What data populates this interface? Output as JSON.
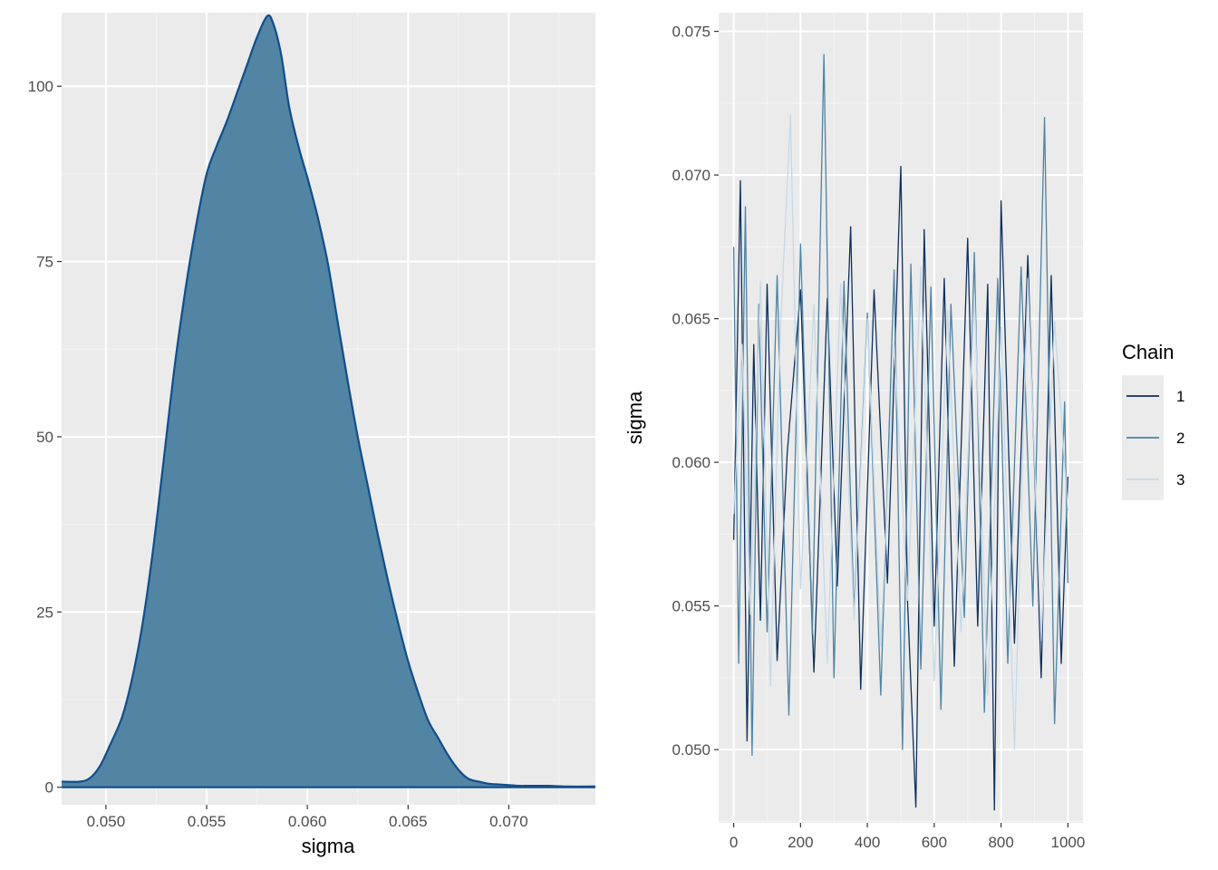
{
  "chart_data": [
    {
      "type": "area",
      "xlabel": "sigma",
      "ylabel": "",
      "xlim": [
        0.0478,
        0.0743
      ],
      "ylim": [
        -2.5,
        110.5
      ],
      "xticks": [
        0.05,
        0.055,
        0.06,
        0.065,
        0.07
      ],
      "xtick_labels": [
        "0.050",
        "0.055",
        "0.060",
        "0.065",
        "0.070"
      ],
      "yticks": [
        0,
        25,
        50,
        75,
        100
      ],
      "ytick_labels": [
        "0",
        "25",
        "50",
        "75",
        "100"
      ],
      "grid": true,
      "fill_color": "#5284a3",
      "line_color": "#104e8b",
      "x": [
        0.0478,
        0.0487,
        0.0492,
        0.0497,
        0.0502,
        0.0508,
        0.0513,
        0.0518,
        0.0523,
        0.0528,
        0.0532,
        0.0535,
        0.054,
        0.0545,
        0.055,
        0.0555,
        0.056,
        0.0565,
        0.057,
        0.0575,
        0.058,
        0.0583,
        0.0587,
        0.0591,
        0.0596,
        0.06,
        0.0605,
        0.061,
        0.0615,
        0.062,
        0.0625,
        0.063,
        0.0635,
        0.064,
        0.0645,
        0.065,
        0.0655,
        0.066,
        0.0665,
        0.067,
        0.0675,
        0.068,
        0.0685,
        0.069,
        0.0695,
        0.07,
        0.0705,
        0.071,
        0.0715,
        0.072,
        0.073,
        0.0743
      ],
      "y": [
        0.8,
        0.8,
        1.3,
        3.0,
        6.0,
        10.0,
        15.5,
        23.0,
        33.0,
        45.0,
        55.0,
        62.0,
        72.0,
        80.5,
        87.5,
        91.5,
        95.0,
        99.0,
        103.0,
        107.0,
        110.0,
        109.0,
        104.5,
        97.0,
        91.0,
        87.0,
        81.5,
        75.0,
        66.5,
        58.0,
        50.0,
        43.0,
        36.0,
        29.5,
        23.5,
        18.0,
        13.5,
        9.5,
        7.0,
        4.5,
        2.5,
        1.2,
        0.8,
        0.5,
        0.4,
        0.3,
        0.2,
        0.2,
        0.2,
        0.2,
        0.1,
        0.1
      ]
    },
    {
      "type": "line",
      "xlabel": "",
      "ylabel": "sigma",
      "xlim": [
        -45,
        1045
      ],
      "ylim": [
        0.04745,
        0.07565
      ],
      "xticks": [
        0,
        200,
        400,
        600,
        800,
        1000
      ],
      "xtick_labels": [
        "0",
        "200",
        "400",
        "600",
        "800",
        "1000"
      ],
      "yticks": [
        0.05,
        0.055,
        0.06,
        0.065,
        0.07,
        0.075
      ],
      "ytick_labels": [
        "0.050",
        "0.055",
        "0.060",
        "0.065",
        "0.070",
        "0.075"
      ],
      "grid": true,
      "legend": {
        "title": "Chain",
        "placement": "right",
        "entries": [
          {
            "label": "1",
            "color": "#0e2f5c"
          },
          {
            "label": "2",
            "color": "#4e83a3"
          },
          {
            "label": "3",
            "color": "#c6d9e8"
          }
        ]
      },
      "series": [
        {
          "name": "1",
          "color": "#0e2f5c",
          "x": [
            0,
            20,
            40,
            60,
            80,
            100,
            130,
            160,
            200,
            240,
            280,
            310,
            350,
            380,
            420,
            460,
            500,
            520,
            545,
            570,
            600,
            630,
            660,
            700,
            730,
            760,
            780,
            800,
            840,
            880,
            920,
            950,
            980,
            1000
          ],
          "y": [
            0.0573,
            0.0698,
            0.0503,
            0.0641,
            0.0545,
            0.0662,
            0.0531,
            0.0603,
            0.066,
            0.0527,
            0.0657,
            0.0557,
            0.0682,
            0.0521,
            0.066,
            0.0558,
            0.0703,
            0.0552,
            0.048,
            0.0681,
            0.0543,
            0.0664,
            0.0529,
            0.0678,
            0.0543,
            0.0662,
            0.0479,
            0.0691,
            0.0537,
            0.0672,
            0.0525,
            0.0665,
            0.053,
            0.0595
          ]
        },
        {
          "name": "2",
          "color": "#4e83a3",
          "x": [
            0,
            15,
            35,
            55,
            75,
            100,
            130,
            165,
            200,
            235,
            270,
            300,
            330,
            360,
            400,
            440,
            480,
            505,
            530,
            560,
            590,
            620,
            650,
            690,
            720,
            750,
            790,
            820,
            860,
            895,
            930,
            960,
            990,
            1000
          ],
          "y": [
            0.0675,
            0.053,
            0.0689,
            0.0498,
            0.0655,
            0.0541,
            0.0665,
            0.0512,
            0.0676,
            0.054,
            0.0742,
            0.0525,
            0.0663,
            0.0548,
            0.0652,
            0.0519,
            0.0667,
            0.05,
            0.0669,
            0.0528,
            0.0661,
            0.0514,
            0.0655,
            0.0546,
            0.0673,
            0.0513,
            0.0664,
            0.053,
            0.0668,
            0.055,
            0.072,
            0.0509,
            0.0621,
            0.0558
          ]
        },
        {
          "name": "3",
          "color": "#c6d9e8",
          "x": [
            0,
            25,
            50,
            80,
            110,
            140,
            170,
            200,
            240,
            280,
            320,
            360,
            400,
            440,
            480,
            520,
            560,
            600,
            640,
            680,
            720,
            760,
            800,
            840,
            880,
            920,
            960,
            1000
          ],
          "y": [
            0.0582,
            0.0641,
            0.0547,
            0.0663,
            0.0522,
            0.0647,
            0.0721,
            0.0556,
            0.0655,
            0.053,
            0.0662,
            0.0545,
            0.065,
            0.0536,
            0.0641,
            0.0552,
            0.0668,
            0.0524,
            0.0653,
            0.0541,
            0.0659,
            0.0519,
            0.0647,
            0.05,
            0.0664,
            0.0538,
            0.0649,
            0.0583
          ]
        }
      ]
    }
  ]
}
